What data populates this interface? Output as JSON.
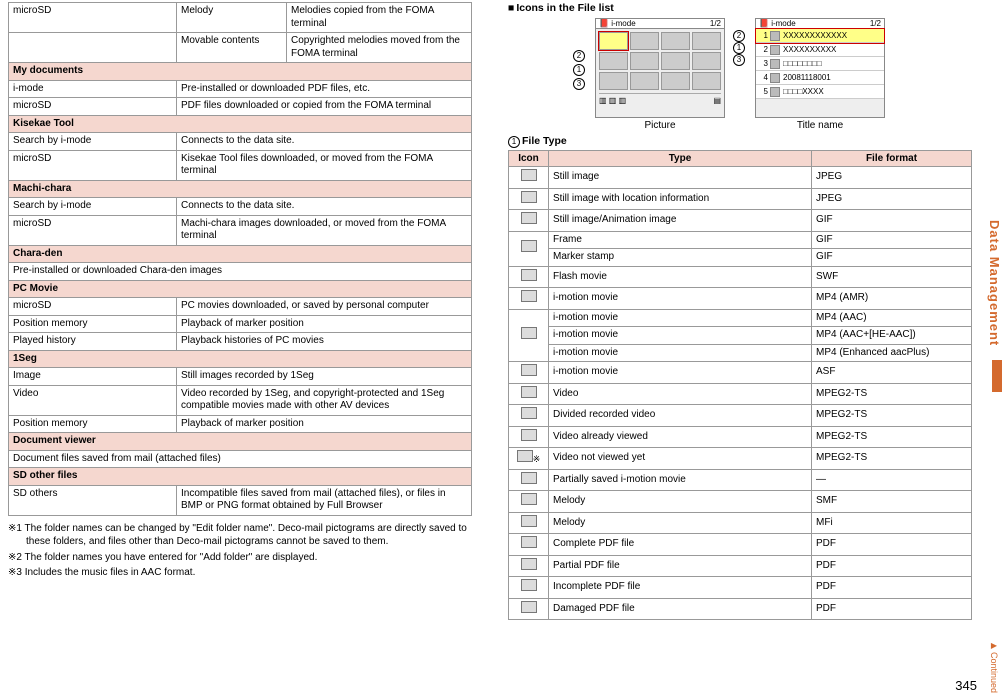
{
  "left_table": {
    "rows": [
      {
        "t": "row",
        "c1": "microSD",
        "c2": "Melody",
        "c3": "Melodies copied from the FOMA terminal"
      },
      {
        "t": "row",
        "c1": "",
        "c2": "Movable contents",
        "c3": "Copyrighted melodies moved from the FOMA terminal"
      },
      {
        "t": "section",
        "label": "My documents"
      },
      {
        "t": "row2",
        "c2": "i-mode",
        "c3": "Pre-installed or downloaded PDF files, etc."
      },
      {
        "t": "row2",
        "c2": "microSD",
        "c3": "PDF files downloaded or copied from the FOMA terminal"
      },
      {
        "t": "section",
        "label": "Kisekae Tool"
      },
      {
        "t": "row2",
        "c2": "Search by i-mode",
        "c3": "Connects to the data site."
      },
      {
        "t": "row2",
        "c2": "microSD",
        "c3": "Kisekae Tool files downloaded, or moved from the FOMA terminal"
      },
      {
        "t": "section",
        "label": "Machi-chara"
      },
      {
        "t": "row2",
        "c2": "Search by i-mode",
        "c3": "Connects to the data site."
      },
      {
        "t": "row2",
        "c2": "microSD",
        "c3": "Machi-chara images downloaded, or moved from the FOMA terminal"
      },
      {
        "t": "section",
        "label": "Chara-den"
      },
      {
        "t": "full",
        "label": "Pre-installed or downloaded Chara-den images"
      },
      {
        "t": "section",
        "label": "PC Movie"
      },
      {
        "t": "row2",
        "c2": "microSD",
        "c3": "PC movies downloaded, or saved by personal computer"
      },
      {
        "t": "row2",
        "c2": "Position memory",
        "c3": "Playback of marker position"
      },
      {
        "t": "row2",
        "c2": "Played history",
        "c3": "Playback histories of PC movies"
      },
      {
        "t": "section",
        "label": "1Seg"
      },
      {
        "t": "row2",
        "c2": "Image",
        "c3": "Still images recorded by 1Seg"
      },
      {
        "t": "row2",
        "c2": "Video",
        "c3": "Video recorded by 1Seg, and copyright-protected and 1Seg compatible movies made with other AV devices"
      },
      {
        "t": "row2",
        "c2": "Position memory",
        "c3": "Playback of marker position"
      },
      {
        "t": "section",
        "label": "Document viewer"
      },
      {
        "t": "full",
        "label": "Document files saved from mail (attached files)"
      },
      {
        "t": "section",
        "label": "SD other files"
      },
      {
        "t": "row2",
        "c2": "SD others",
        "c3": "Incompatible files saved from mail (attached files), or files in BMP or PNG format obtained by Full Browser"
      }
    ]
  },
  "notes": {
    "n1": "※1 The folder names can be changed by \"Edit folder name\". Deco-mail pictograms are directly saved to these folders, and files other than Deco-mail pictograms cannot be saved to them.",
    "n2": "※2 The folder names you have entered for \"Add folder\" are displayed.",
    "n3": "※3 Includes the music files in AAC format."
  },
  "right": {
    "heading": "Icons in the File list",
    "mock_bar": "i-mode",
    "mock_page": "1/2",
    "caption_left": "Picture",
    "caption_right": "Title name",
    "list_items": [
      "XXXXXXXXXXXX",
      "XXXXXXXXXX",
      "□□□□□□□□",
      "20081118001",
      "□□□□XXXX"
    ],
    "sub_num": "1",
    "sub_label": "File Type",
    "th_icon": "Icon",
    "th_type": "Type",
    "th_fmt": "File format",
    "ft": [
      {
        "type": "Still image",
        "fmt": "JPEG"
      },
      {
        "type": "Still image with location information",
        "fmt": "JPEG"
      },
      {
        "type": "Still image/Animation image",
        "fmt": "GIF"
      },
      {
        "type": "Frame",
        "fmt": "GIF",
        "merge": "top"
      },
      {
        "type": "Marker stamp",
        "fmt": "GIF",
        "merge": "bot"
      },
      {
        "type": "Flash movie",
        "fmt": "SWF"
      },
      {
        "type": "i-motion movie",
        "fmt": "MP4 (AMR)"
      },
      {
        "type": "i-motion movie",
        "fmt": "MP4 (AAC)",
        "merge": "top3"
      },
      {
        "type": "i-motion movie",
        "fmt": "MP4 (AAC+[HE-AAC])",
        "merge": "mid3"
      },
      {
        "type": "i-motion movie",
        "fmt": "MP4 (Enhanced aacPlus)",
        "merge": "bot3"
      },
      {
        "type": "i-motion movie",
        "fmt": "ASF"
      },
      {
        "type": "Video",
        "fmt": "MPEG2-TS"
      },
      {
        "type": "Divided recorded video",
        "fmt": "MPEG2-TS"
      },
      {
        "type": "Video already viewed",
        "fmt": "MPEG2-TS"
      },
      {
        "type": "Video not viewed yet",
        "fmt": "MPEG2-TS",
        "note": "※"
      },
      {
        "type": "Partially saved i-motion movie",
        "fmt": "—"
      },
      {
        "type": "Melody",
        "fmt": "SMF"
      },
      {
        "type": "Melody",
        "fmt": "MFi"
      },
      {
        "type": "Complete PDF file",
        "fmt": "PDF"
      },
      {
        "type": "Partial PDF file",
        "fmt": "PDF"
      },
      {
        "type": "Incomplete PDF file",
        "fmt": "PDF"
      },
      {
        "type": "Damaged PDF file",
        "fmt": "PDF"
      }
    ]
  },
  "chrome": {
    "side": "Data Management",
    "page": "345",
    "cont": "Continued"
  }
}
